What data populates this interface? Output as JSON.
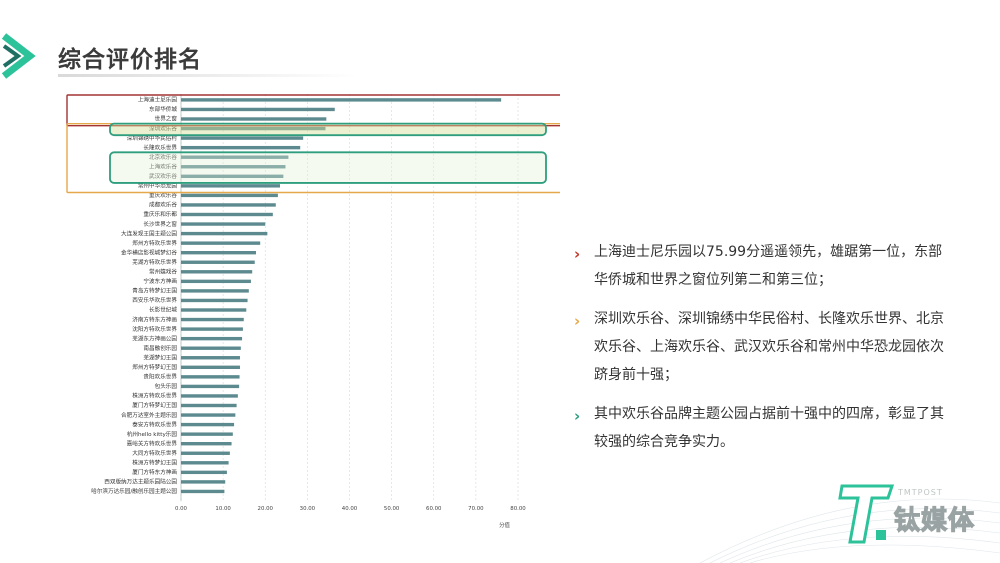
{
  "header": {
    "title": "综合评价排名"
  },
  "chart_data": {
    "type": "bar",
    "orientation": "horizontal",
    "xlabel": "分值",
    "xlim": [
      0,
      80
    ],
    "xticks": [
      "0.00",
      "10.00",
      "20.00",
      "30.00",
      "40.00",
      "50.00",
      "60.00",
      "70.00",
      "80.00"
    ],
    "categories": [
      "上海迪士尼乐园",
      "东部华侨城",
      "世界之窗",
      "深圳欢乐谷",
      "深圳锦绣中华民俗村",
      "长隆欢乐世界",
      "北京欢乐谷",
      "上海欢乐谷",
      "武汉欢乐谷",
      "常州中华恐龙园",
      "重庆欢乐谷",
      "成都欢乐谷",
      "重庆乐和乐都",
      "长沙世界之窗",
      "大连发现王国主题公园",
      "郑州方特欢乐世界",
      "金华横店影视城梦幻谷",
      "芜湖方特欢乐世界",
      "常州嬉戏谷",
      "宁波东方神画",
      "青岛方特梦幻王国",
      "西安乐华欢乐世界",
      "长影世纪城",
      "济南方特东方神画",
      "沈阳方特欢乐世界",
      "芜湖东方神画公园",
      "南昌融创乐园",
      "芜湖梦幻王国",
      "郑州方特梦幻王国",
      "贵阳欢乐世界",
      "包头乐园",
      "株洲方特欢乐世界",
      "厦门方特梦幻王国",
      "合肥万达室外主题乐园",
      "泰安方特欢乐世界",
      "杭州hello kitty乐园",
      "嘉峪关方特欢乐世界",
      "大同方特欢乐世界",
      "株洲方特梦幻王国",
      "厦门方特东方神画",
      "西双版纳万达主题乐园陆公园",
      "哈尔滨万达乐园/融创乐园主题公园"
    ],
    "values": [
      76.0,
      36.5,
      34.5,
      34.3,
      29.0,
      28.3,
      25.5,
      24.8,
      24.3,
      23.5,
      23.0,
      22.5,
      21.8,
      20.0,
      20.5,
      18.8,
      17.8,
      17.5,
      16.9,
      16.6,
      16.1,
      15.8,
      15.5,
      14.9,
      14.7,
      14.5,
      14.2,
      14.0,
      14.0,
      13.9,
      13.8,
      13.5,
      13.2,
      12.9,
      12.6,
      12.3,
      12.0,
      11.6,
      11.3,
      10.9,
      10.5,
      10.3
    ],
    "bar_color": "#5c8a8f",
    "highlight_boxes": [
      {
        "label": "top-3",
        "color": "#a33333"
      },
      {
        "label": "top-10",
        "color": "#e5a84a"
      },
      {
        "label": "happy-valley-1",
        "color": "#2e9e7e"
      },
      {
        "label": "happy-valley-2",
        "color": "#2e9e7e"
      }
    ]
  },
  "bullets": [
    {
      "color": "#c0392b",
      "text": "上海迪士尼乐园以75.99分遥遥领先，雄踞第一位，东部华侨城和世界之窗位列第二和第三位；"
    },
    {
      "color": "#e5a84a",
      "text": "深圳欢乐谷、深圳锦绣中华民俗村、长隆欢乐世界、北京欢乐谷、上海欢乐谷、武汉欢乐谷和常州中华恐龙园依次跻身前十强；"
    },
    {
      "color": "#2e9e7e",
      "text": "其中欢乐谷品牌主题公园占据前十强中的四席，彰显了其较强的综合竞争实力。"
    }
  ],
  "logo": {
    "sub": "TMTPOST",
    "main": "钛媒体",
    "accent": "#2cc29a"
  },
  "colors": {
    "teal": "#2cc29a",
    "chevron_dark": "#1f6f64"
  }
}
